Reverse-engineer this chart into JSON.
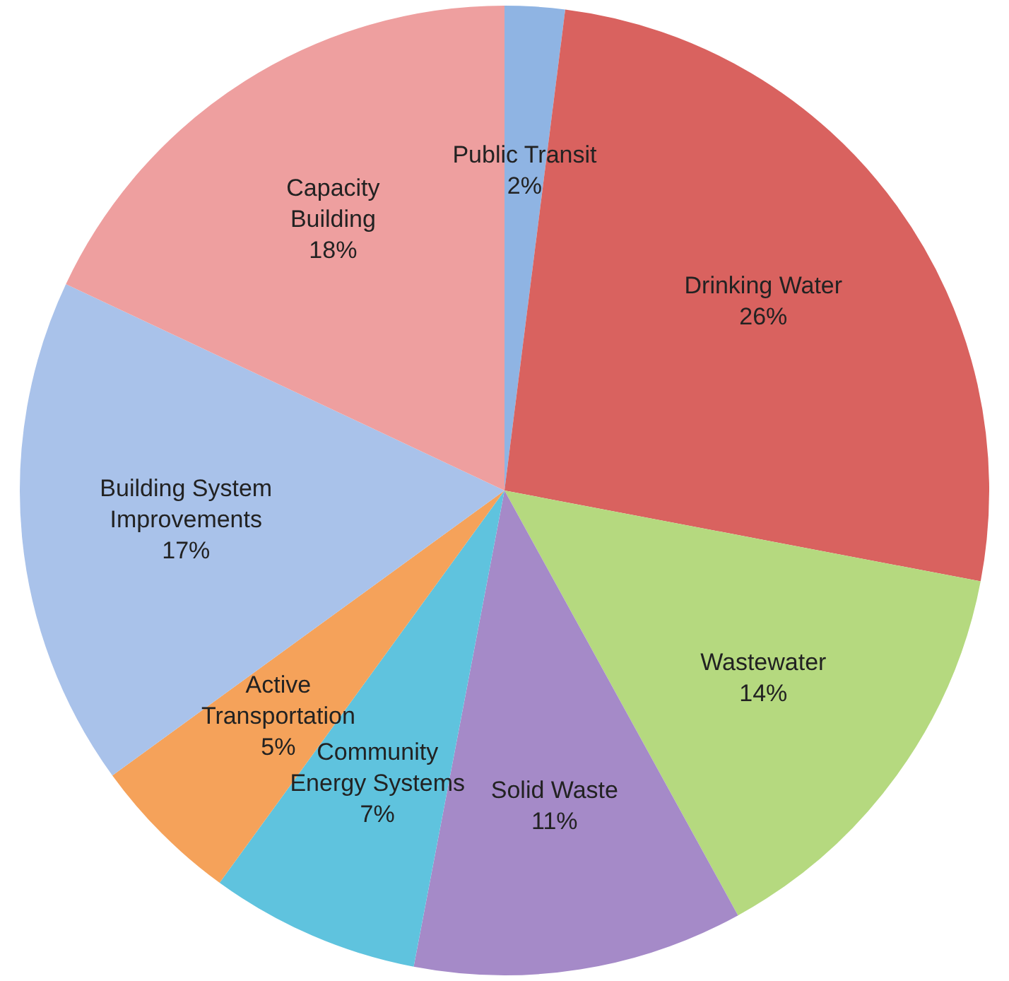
{
  "chart_data": {
    "type": "pie",
    "categories": [
      "Public Transit",
      "Drinking Water",
      "Wastewater",
      "Solid Waste",
      "Community Energy Systems",
      "Active Transportation",
      "Building System Improvements",
      "Capacity Building"
    ],
    "values": [
      2,
      26,
      14,
      11,
      7,
      5,
      17,
      18
    ],
    "colors": [
      "#8fb4e3",
      "#d9625f",
      "#b5d97f",
      "#a58ac8",
      "#5fc3de",
      "#f5a25a",
      "#a9c2ea",
      "#ee9f9f"
    ],
    "value_labels": [
      "2%",
      "26%",
      "14%",
      "11%",
      "7%",
      "5%",
      "17%",
      "18%"
    ],
    "legend": false
  }
}
